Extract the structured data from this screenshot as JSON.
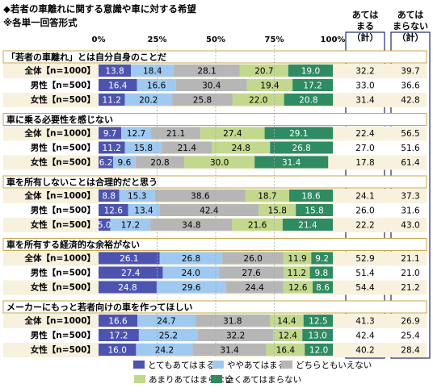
{
  "header": {
    "title": "◆若者の車離れに関する意識や車に対する希望",
    "subtitle": "※各単一回答形式"
  },
  "chart_data": {
    "type": "bar",
    "stacked": true,
    "orientation": "horizontal",
    "xlim": [
      0,
      100
    ],
    "x_ticks": [
      "0%",
      "25%",
      "50%",
      "75%",
      "100%"
    ],
    "legend_position": "bottom",
    "series_names": [
      "とてもあてはまる",
      "ややあてはまる",
      "どちらともいえない",
      "あまりあてはまらない",
      "全くあてはまらない"
    ],
    "colors": [
      "#4c54b0",
      "#9fc9f0",
      "#b6b6b6",
      "#c2d88d",
      "#2e8b62"
    ],
    "summary_headers": [
      "あてはまる（計）",
      "あてはまらない（計）"
    ],
    "groups": [
      {
        "question": "「若者の車離れ」とは自分自身のことだ",
        "rows": [
          {
            "label": "全体【n=1000】",
            "values": [
              13.8,
              18.4,
              28.1,
              20.7,
              19.0
            ],
            "applies": "32.2",
            "not_applies": "39.7"
          },
          {
            "label": "男性【n=500】",
            "values": [
              16.4,
              16.6,
              30.4,
              19.4,
              17.2
            ],
            "applies": "33.0",
            "not_applies": "36.6"
          },
          {
            "label": "女性【n=500】",
            "values": [
              11.2,
              20.2,
              25.8,
              22.0,
              20.8
            ],
            "applies": "31.4",
            "not_applies": "42.8"
          }
        ]
      },
      {
        "question": "車に乗る必要性を感じない",
        "rows": [
          {
            "label": "全体【n=1000】",
            "values": [
              9.7,
              12.7,
              21.1,
              27.4,
              29.1
            ],
            "applies": "22.4",
            "not_applies": "56.5"
          },
          {
            "label": "男性【n=500】",
            "values": [
              11.2,
              15.8,
              21.4,
              24.8,
              26.8
            ],
            "applies": "27.0",
            "not_applies": "51.6"
          },
          {
            "label": "女性【n=500】",
            "values": [
              6.2,
              9.6,
              20.8,
              30.0,
              31.4
            ],
            "applies": "17.8",
            "not_applies": "61.4"
          }
        ]
      },
      {
        "question": "車を所有しないことは合理的だと思う",
        "rows": [
          {
            "label": "全体【n=1000】",
            "values": [
              8.8,
              15.3,
              38.6,
              18.7,
              18.6
            ],
            "applies": "24.1",
            "not_applies": "37.3"
          },
          {
            "label": "男性【n=500】",
            "values": [
              12.6,
              13.4,
              42.4,
              15.8,
              15.8
            ],
            "applies": "26.0",
            "not_applies": "31.6"
          },
          {
            "label": "女性【n=500】",
            "values": [
              5.0,
              17.2,
              34.8,
              21.6,
              21.4
            ],
            "applies": "22.2",
            "not_applies": "43.0"
          }
        ]
      },
      {
        "question": "車を所有する経済的な余裕がない",
        "rows": [
          {
            "label": "全体【n=1000】",
            "values": [
              26.1,
              26.8,
              26.0,
              11.9,
              9.2
            ],
            "applies": "52.9",
            "not_applies": "21.1"
          },
          {
            "label": "男性【n=500】",
            "values": [
              27.4,
              24.0,
              27.6,
              11.2,
              9.8
            ],
            "applies": "51.4",
            "not_applies": "21.0"
          },
          {
            "label": "女性【n=500】",
            "values": [
              24.8,
              29.6,
              24.4,
              12.6,
              8.6
            ],
            "applies": "54.4",
            "not_applies": "21.2"
          }
        ]
      },
      {
        "question": "メーカーにもっと若者向けの車を作ってほしい",
        "rows": [
          {
            "label": "全体【n=1000】",
            "values": [
              16.6,
              24.7,
              31.8,
              14.4,
              12.5
            ],
            "applies": "41.3",
            "not_applies": "26.9"
          },
          {
            "label": "男性【n=500】",
            "values": [
              17.2,
              25.2,
              32.2,
              12.4,
              13.0
            ],
            "applies": "42.4",
            "not_applies": "25.4"
          },
          {
            "label": "女性【n=500】",
            "values": [
              16.0,
              24.2,
              31.4,
              16.4,
              12.0
            ],
            "applies": "40.2",
            "not_applies": "28.4"
          }
        ]
      }
    ]
  }
}
